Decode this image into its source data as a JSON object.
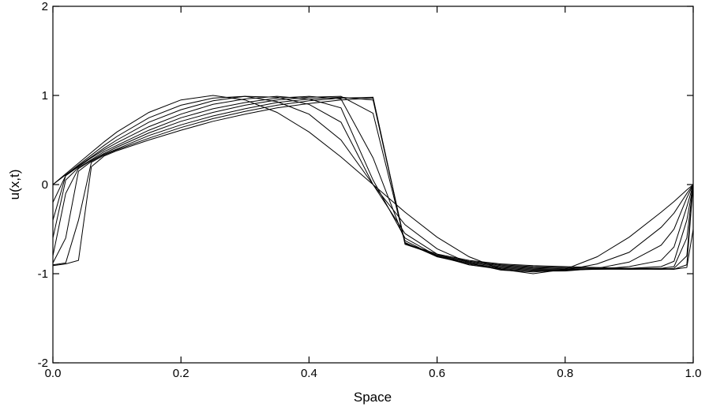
{
  "chart_data": {
    "type": "line",
    "title": "",
    "xlabel": "Space",
    "ylabel": "u(x,t)",
    "xlim": [
      0,
      1
    ],
    "ylim": [
      -2,
      2
    ],
    "grid": false,
    "legend": "none",
    "x_ticks": [
      0.0,
      0.2,
      0.4,
      0.6,
      0.8,
      1.0
    ],
    "x_tick_labels": [
      "0.0",
      "0.2",
      "0.4",
      "0.6",
      "0.8",
      "1.0"
    ],
    "y_ticks": [
      -2,
      -1,
      0,
      1,
      2
    ],
    "y_tick_labels": [
      "-2",
      "-1",
      "0",
      "1",
      "2"
    ],
    "x": [
      0.0,
      0.02,
      0.04,
      0.06,
      0.08,
      0.1,
      0.15,
      0.2,
      0.25,
      0.3,
      0.35,
      0.4,
      0.45,
      0.5,
      0.55,
      0.6,
      0.65,
      0.7,
      0.75,
      0.8,
      0.85,
      0.9,
      0.95,
      0.97,
      0.99,
      1.0
    ],
    "series": [
      {
        "values": [
          0.0,
          0.12,
          0.24,
          0.36,
          0.48,
          0.59,
          0.81,
          0.95,
          1.0,
          0.95,
          0.81,
          0.59,
          0.31,
          0.0,
          -0.31,
          -0.59,
          -0.81,
          -0.95,
          -1.0,
          -0.95,
          -0.81,
          -0.59,
          -0.31,
          -0.19,
          -0.06,
          0.0
        ]
      },
      {
        "values": [
          0.0,
          0.11,
          0.22,
          0.33,
          0.44,
          0.54,
          0.75,
          0.89,
          0.97,
          0.99,
          0.93,
          0.79,
          0.5,
          0.0,
          -0.45,
          -0.72,
          -0.88,
          -0.96,
          -0.98,
          -0.96,
          -0.89,
          -0.76,
          -0.48,
          -0.32,
          -0.1,
          0.0
        ]
      },
      {
        "values": [
          -0.2,
          0.1,
          0.21,
          0.31,
          0.41,
          0.5,
          0.7,
          0.84,
          0.94,
          0.99,
          0.98,
          0.9,
          0.7,
          0.0,
          -0.55,
          -0.78,
          -0.9,
          -0.95,
          -0.97,
          -0.97,
          -0.94,
          -0.87,
          -0.68,
          -0.5,
          -0.15,
          0.0
        ]
      },
      {
        "values": [
          -0.4,
          0.1,
          0.2,
          0.3,
          0.39,
          0.47,
          0.65,
          0.79,
          0.9,
          0.96,
          0.99,
          0.96,
          0.86,
          0.05,
          -0.6,
          -0.8,
          -0.9,
          -0.94,
          -0.96,
          -0.96,
          -0.95,
          -0.92,
          -0.85,
          -0.7,
          -0.25,
          0.0
        ]
      },
      {
        "values": [
          -0.6,
          0.05,
          0.19,
          0.28,
          0.37,
          0.44,
          0.61,
          0.75,
          0.85,
          0.92,
          0.97,
          0.99,
          0.96,
          0.3,
          -0.63,
          -0.81,
          -0.89,
          -0.93,
          -0.95,
          -0.95,
          -0.95,
          -0.94,
          -0.92,
          -0.86,
          -0.4,
          0.0
        ]
      },
      {
        "values": [
          -0.8,
          -0.1,
          0.18,
          0.27,
          0.35,
          0.42,
          0.58,
          0.71,
          0.81,
          0.89,
          0.95,
          0.98,
          0.99,
          0.8,
          -0.65,
          -0.81,
          -0.88,
          -0.92,
          -0.94,
          -0.95,
          -0.95,
          -0.95,
          -0.94,
          -0.92,
          -0.6,
          0.0
        ]
      },
      {
        "values": [
          -0.88,
          -0.6,
          0.15,
          0.26,
          0.34,
          0.4,
          0.55,
          0.67,
          0.77,
          0.85,
          0.92,
          0.96,
          0.98,
          0.95,
          -0.66,
          -0.8,
          -0.87,
          -0.91,
          -0.93,
          -0.94,
          -0.94,
          -0.95,
          -0.95,
          -0.94,
          -0.8,
          0.0
        ]
      },
      {
        "values": [
          -0.9,
          -0.88,
          -0.4,
          0.25,
          0.33,
          0.39,
          0.52,
          0.64,
          0.74,
          0.82,
          0.89,
          0.94,
          0.97,
          0.98,
          -0.67,
          -0.79,
          -0.86,
          -0.9,
          -0.92,
          -0.93,
          -0.94,
          -0.94,
          -0.95,
          -0.95,
          -0.9,
          0.0
        ]
      },
      {
        "values": [
          -0.91,
          -0.89,
          -0.85,
          0.2,
          0.32,
          0.38,
          0.5,
          0.61,
          0.71,
          0.79,
          0.86,
          0.91,
          0.95,
          0.97,
          -0.66,
          -0.78,
          -0.85,
          -0.89,
          -0.91,
          -0.92,
          -0.93,
          -0.94,
          -0.94,
          -0.95,
          -0.93,
          -0.5
        ]
      }
    ]
  }
}
